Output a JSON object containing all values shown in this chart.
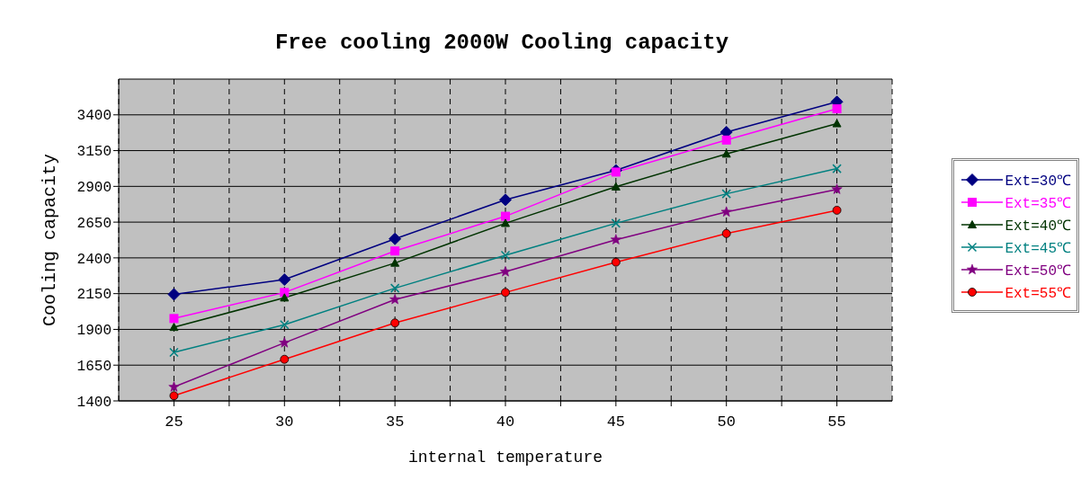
{
  "chart_data": {
    "type": "line",
    "title": "Free cooling 2000W Cooling capacity",
    "xlabel": "internal temperature",
    "ylabel": "Cooling capacity",
    "x": [
      25,
      30,
      35,
      40,
      45,
      50,
      55
    ],
    "xlim": [
      22.5,
      57.5
    ],
    "xticks": [
      25,
      {
        "value": 27.5,
        "label": null
      },
      30,
      {
        "value": 32.5,
        "label": null
      },
      35,
      {
        "value": 37.5,
        "label": null
      },
      40,
      {
        "value": 42.5,
        "label": null
      },
      45,
      {
        "value": 47.5,
        "label": null
      },
      50,
      {
        "value": 52.5,
        "label": null
      },
      55
    ],
    "ylim": [
      1400,
      3650
    ],
    "yticks": [
      1400,
      1650,
      1900,
      2150,
      2400,
      2650,
      2900,
      3150,
      3400
    ],
    "grid": true,
    "legend": "right",
    "series": [
      {
        "name": "Ext=30℃",
        "color": "#000080",
        "marker": "diamond",
        "values": [
          2145,
          2248,
          2533,
          2806,
          3012,
          3279,
          3491
        ]
      },
      {
        "name": "Ext=35℃",
        "color": "#ff00ff",
        "marker": "square",
        "values": [
          1976,
          2158,
          2448,
          2691,
          3000,
          3224,
          3442
        ]
      },
      {
        "name": "Ext=40℃",
        "color": "#003300",
        "marker": "triangle",
        "values": [
          1915,
          2121,
          2364,
          2642,
          2897,
          3127,
          3339
        ]
      },
      {
        "name": "Ext=45℃",
        "color": "#008080",
        "marker": "cross",
        "values": [
          1739,
          1933,
          2188,
          2418,
          2642,
          2848,
          3024
        ]
      },
      {
        "name": "Ext=50℃",
        "color": "#800080",
        "marker": "star",
        "values": [
          1497,
          1806,
          2109,
          2303,
          2527,
          2721,
          2879
        ]
      },
      {
        "name": "Ext=55℃",
        "color": "#ff0000",
        "marker": "circle",
        "values": [
          1436,
          1691,
          1945,
          2158,
          2370,
          2570,
          2733
        ]
      }
    ]
  }
}
